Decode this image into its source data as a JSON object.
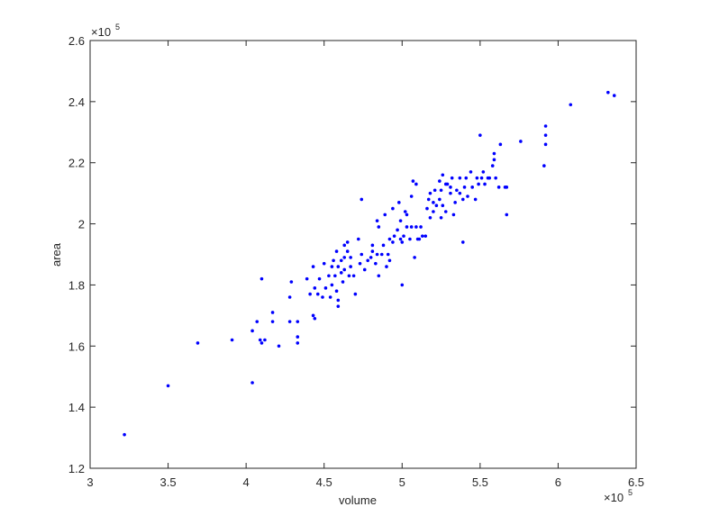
{
  "chart_data": {
    "type": "scatter",
    "x_label": "volume",
    "y_label": "area",
    "x_multiplier": {
      "base": "×10",
      "power": "5"
    },
    "y_multiplier": {
      "base": "×10",
      "power": "5"
    },
    "color": "#0000ff",
    "xlim": [
      3,
      6.5
    ],
    "xticks": [
      3,
      3.5,
      4,
      4.5,
      5,
      5.5,
      6,
      6.5
    ],
    "ylim": [
      1.2,
      2.6
    ],
    "yticks": [
      1.2,
      1.4,
      1.6,
      1.8,
      2,
      2.2,
      2.4,
      2.6
    ],
    "x": [
      3.22,
      3.5,
      3.69,
      3.91,
      4.04,
      4.04,
      4.07,
      4.09,
      4.1,
      4.12,
      4.1,
      4.17,
      4.17,
      4.21,
      4.28,
      4.28,
      4.29,
      4.33,
      4.33,
      4.33,
      4.39,
      4.41,
      4.43,
      4.43,
      4.44,
      4.44,
      4.46,
      4.47,
      4.49,
      4.5,
      4.51,
      4.53,
      4.54,
      4.55,
      4.55,
      4.56,
      4.57,
      4.58,
      4.58,
      4.59,
      4.59,
      4.59,
      4.61,
      4.61,
      4.62,
      4.63,
      4.63,
      4.63,
      4.65,
      4.65,
      4.66,
      4.67,
      4.67,
      4.69,
      4.7,
      4.72,
      4.73,
      4.74,
      4.74,
      4.76,
      4.78,
      4.8,
      4.81,
      4.81,
      4.83,
      4.84,
      4.84,
      4.85,
      4.85,
      4.87,
      4.88,
      4.89,
      4.9,
      4.91,
      4.92,
      4.92,
      4.94,
      4.94,
      4.95,
      4.97,
      4.98,
      4.99,
      4.99,
      5.0,
      5.0,
      5.01,
      5.02,
      5.03,
      5.03,
      5.05,
      5.06,
      5.06,
      5.07,
      5.08,
      5.09,
      5.09,
      5.1,
      5.11,
      5.12,
      5.13,
      5.15,
      5.16,
      5.17,
      5.18,
      5.18,
      5.2,
      5.2,
      5.21,
      5.22,
      5.24,
      5.24,
      5.25,
      5.25,
      5.26,
      5.26,
      5.28,
      5.28,
      5.29,
      5.31,
      5.31,
      5.32,
      5.33,
      5.34,
      5.35,
      5.37,
      5.37,
      5.39,
      5.39,
      5.4,
      5.41,
      5.42,
      5.44,
      5.45,
      5.47,
      5.48,
      5.49,
      5.5,
      5.51,
      5.52,
      5.53,
      5.55,
      5.56,
      5.58,
      5.59,
      5.59,
      5.6,
      5.62,
      5.63,
      5.66,
      5.67,
      5.67,
      5.76,
      5.91,
      5.92,
      5.92,
      5.92,
      6.08,
      6.32,
      6.36
    ],
    "y": [
      1.31,
      1.47,
      1.61,
      1.62,
      1.48,
      1.65,
      1.68,
      1.62,
      1.61,
      1.62,
      1.82,
      1.71,
      1.68,
      1.6,
      1.68,
      1.76,
      1.81,
      1.68,
      1.63,
      1.61,
      1.82,
      1.77,
      1.86,
      1.7,
      1.69,
      1.79,
      1.77,
      1.82,
      1.76,
      1.87,
      1.79,
      1.83,
      1.76,
      1.86,
      1.8,
      1.88,
      1.83,
      1.78,
      1.91,
      1.75,
      1.73,
      1.86,
      1.88,
      1.84,
      1.81,
      1.89,
      1.93,
      1.85,
      1.94,
      1.91,
      1.83,
      1.89,
      1.86,
      1.83,
      1.77,
      1.95,
      1.87,
      2.08,
      1.9,
      1.85,
      1.88,
      1.89,
      1.91,
      1.93,
      1.87,
      2.01,
      1.9,
      1.83,
      1.99,
      1.9,
      1.93,
      2.03,
      1.86,
      1.9,
      1.88,
      1.95,
      2.05,
      1.94,
      1.96,
      1.98,
      2.07,
      2.01,
      1.95,
      1.8,
      1.94,
      1.96,
      2.04,
      1.99,
      2.03,
      1.95,
      2.09,
      1.99,
      2.14,
      1.89,
      2.13,
      1.99,
      1.95,
      1.95,
      1.99,
      1.96,
      1.96,
      2.05,
      2.08,
      2.02,
      2.1,
      2.07,
      2.04,
      2.11,
      2.06,
      2.08,
      2.14,
      2.02,
      2.11,
      2.16,
      2.06,
      2.13,
      2.04,
      2.13,
      2.1,
      2.12,
      2.15,
      2.03,
      2.07,
      2.11,
      2.15,
      2.1,
      1.94,
      2.08,
      2.12,
      2.15,
      2.09,
      2.17,
      2.12,
      2.08,
      2.15,
      2.13,
      2.29,
      2.15,
      2.17,
      2.13,
      2.15,
      2.15,
      2.19,
      2.21,
      2.23,
      2.15,
      2.12,
      2.26,
      2.12,
      2.03,
      2.12,
      2.27,
      2.19,
      2.26,
      2.29,
      2.32,
      2.39,
      2.43,
      2.42
    ]
  }
}
